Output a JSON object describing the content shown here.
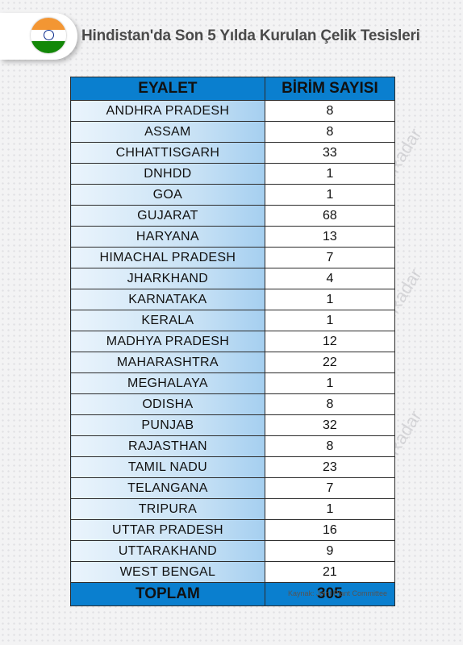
{
  "header": {
    "title": "Hindistan'da Son 5 Yılda Kurulan Çelik Tesisleri"
  },
  "table": {
    "columns": [
      "EYALET",
      "BİRİM SAYISI"
    ],
    "rows": [
      {
        "state": "ANDHRA PRADESH",
        "count": "8"
      },
      {
        "state": "ASSAM",
        "count": "8"
      },
      {
        "state": "CHHATTISGARH",
        "count": "33"
      },
      {
        "state": "DNHDD",
        "count": "1"
      },
      {
        "state": "GOA",
        "count": "1"
      },
      {
        "state": "GUJARAT",
        "count": "68"
      },
      {
        "state": "HARYANA",
        "count": "13"
      },
      {
        "state": "HIMACHAL PRADESH",
        "count": "7"
      },
      {
        "state": "JHARKHAND",
        "count": "4"
      },
      {
        "state": "KARNATAKA",
        "count": "1"
      },
      {
        "state": "KERALA",
        "count": "1"
      },
      {
        "state": "MADHYA PRADESH",
        "count": "12"
      },
      {
        "state": "MAHARASHTRA",
        "count": "22"
      },
      {
        "state": "MEGHALAYA",
        "count": "1"
      },
      {
        "state": "ODISHA",
        "count": "8"
      },
      {
        "state": "PUNJAB",
        "count": "32"
      },
      {
        "state": "RAJASTHAN",
        "count": "8"
      },
      {
        "state": "TAMIL NADU",
        "count": "23"
      },
      {
        "state": "TELANGANA",
        "count": "7"
      },
      {
        "state": "TRIPURA",
        "count": "1"
      },
      {
        "state": "UTTAR PRADESH",
        "count": "16"
      },
      {
        "state": "UTTARAKHAND",
        "count": "9"
      },
      {
        "state": "WEST BENGAL",
        "count": "21"
      }
    ],
    "total": {
      "label": "TOPLAM",
      "value": "305"
    }
  },
  "source": "Kaynak: Joint Plant Committee",
  "watermark": "SteelRadar",
  "flag_icon": "india-flag-icon",
  "colors": {
    "header_blue": "#0a7fcf",
    "state_cell_gradient_end": "#a5cff0",
    "title_gray": "#4a4a4a"
  }
}
